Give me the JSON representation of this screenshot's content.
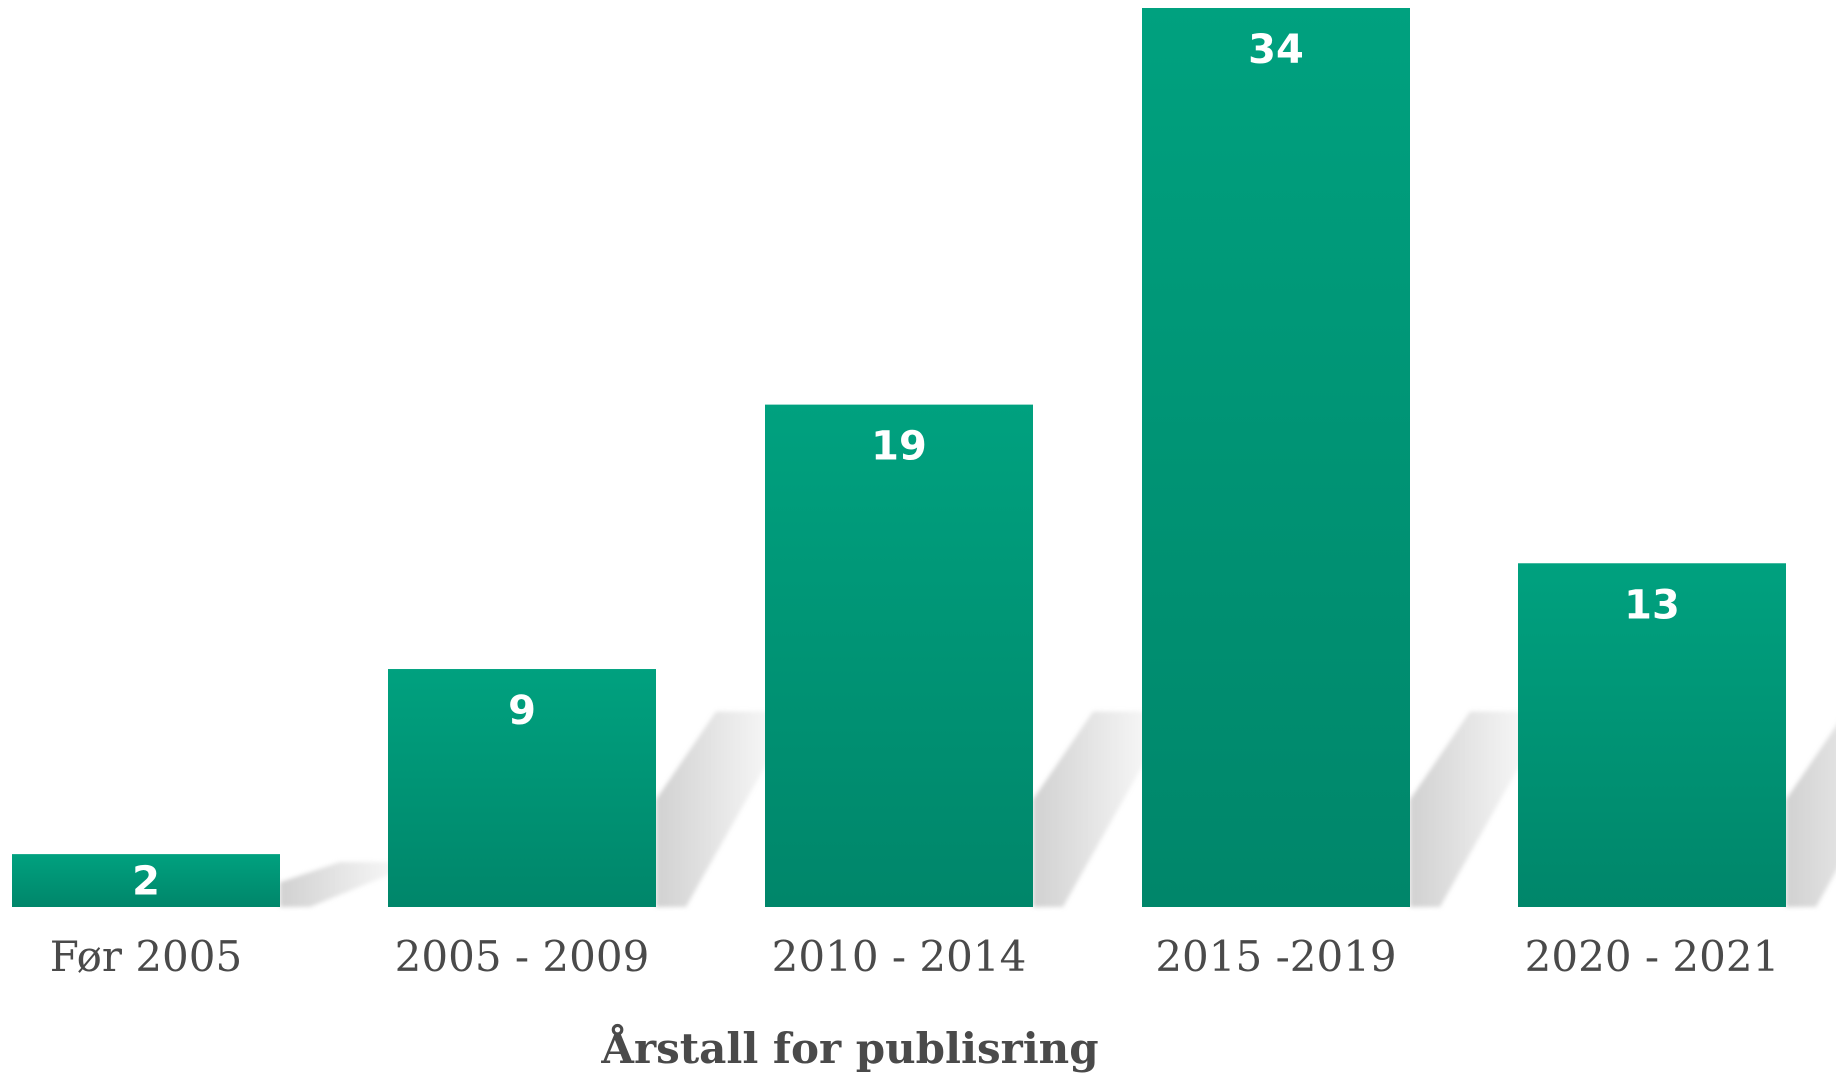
{
  "chart_data": {
    "type": "bar",
    "categories": [
      "Før 2005",
      "2005 - 2009",
      "2010 - 2014",
      "2015 -2019",
      "2020 - 2021"
    ],
    "values": [
      2,
      9,
      19,
      34,
      13
    ],
    "title": "",
    "xlabel": "Årstall for publisring",
    "ylabel": "",
    "ylim": [
      0,
      34
    ],
    "grid": false,
    "data_labels": true,
    "colors": {
      "bar_top": "#00a17f",
      "bar_bottom": "#00866a",
      "shadow": "#c9c9c9",
      "label": "#ffffff",
      "text": "#4a4a4a"
    }
  }
}
